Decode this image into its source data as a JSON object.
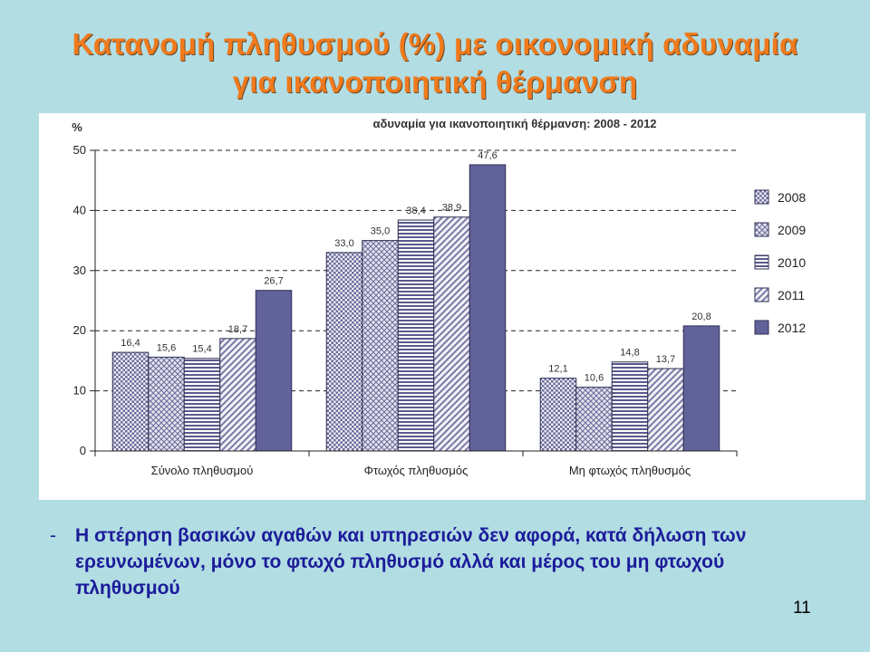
{
  "slide": {
    "title_line1": "Κατανομή πληθυσμού (%) με οικονομική αδυναμία",
    "title_line2": "για ικανοποιητική θέρμανση",
    "bullet_marker": "-",
    "bullet_text": "Η στέρηση βασικών αγαθών και υπηρεσιών δεν αφορά, κατά δήλωση των ερευνωμένων, μόνο το φτωχό πληθυσμό αλλά και μέρος του μη φτωχού πληθυσμού",
    "page_number": "11"
  },
  "chart_data": {
    "type": "bar",
    "title": "αδυναμία για ικανοποιητική θέρμανση: 2008 - 2012",
    "ylabel": "%",
    "ylim": [
      0,
      50
    ],
    "yticks": [
      0,
      10,
      20,
      30,
      40,
      50
    ],
    "grid": true,
    "legend_position": "right",
    "categories": [
      "Σύνολο πληθυσμού",
      "Φτωχός πληθυσμός",
      "Μη φτωχός πληθυσμός"
    ],
    "series": [
      {
        "name": "2008",
        "values": [
          16.4,
          33.0,
          12.1
        ],
        "labels": [
          "16,4",
          "33,0",
          "12,1"
        ],
        "pattern": "dots",
        "color": "#6a6a9a"
      },
      {
        "name": "2009",
        "values": [
          15.6,
          35.0,
          10.6
        ],
        "labels": [
          "15,6",
          "35,0",
          "10,6"
        ],
        "pattern": "diamonds",
        "color": "#6a6a9a"
      },
      {
        "name": "2010",
        "values": [
          15.4,
          38.4,
          14.8
        ],
        "labels": [
          "15,4",
          "38,4",
          "14,8"
        ],
        "pattern": "hlines",
        "color": "#5a5a8c"
      },
      {
        "name": "2011",
        "values": [
          18.7,
          38.9,
          13.7
        ],
        "labels": [
          "18,7",
          "38,9",
          "13,7"
        ],
        "pattern": "diagonal",
        "color": "#7a7aa8"
      },
      {
        "name": "2012",
        "values": [
          26.7,
          47.6,
          20.8
        ],
        "labels": [
          "26,7",
          "47,6",
          "20,8"
        ],
        "pattern": "solid",
        "color": "#62629a"
      }
    ]
  }
}
